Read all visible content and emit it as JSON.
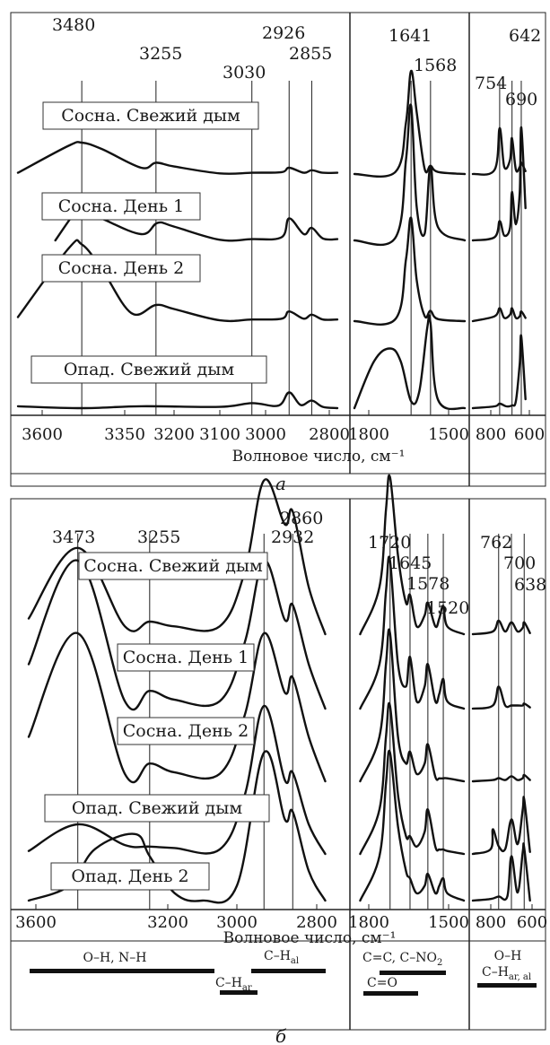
{
  "panels": [
    {
      "letter": "а",
      "xlabel": "Волновое число, см⁻¹",
      "sections": [
        {
          "ticks": [
            "3600",
            "3350",
            "3200",
            "3100",
            "3000",
            "2800"
          ],
          "peaks": [
            "3480",
            "3255",
            "3030",
            "2926",
            "2855"
          ]
        },
        {
          "ticks": [
            "1800",
            "1500"
          ],
          "peaks": [
            "1641",
            "1568"
          ]
        },
        {
          "ticks": [
            "800",
            "600"
          ],
          "peaks": [
            "754",
            "690",
            "642"
          ]
        }
      ],
      "labels": [
        "Сосна. Свежий дым",
        "Сосна. День 1",
        "Сосна. День 2",
        "Опад. Свежий дым"
      ]
    },
    {
      "letter": "б",
      "xlabel": "Волновое число, см⁻¹",
      "sections": [
        {
          "ticks": [
            "3600",
            "3200",
            "3000",
            "2800"
          ],
          "peaks": [
            "3473",
            "3255",
            "2932",
            "2860"
          ]
        },
        {
          "ticks": [
            "1800",
            "1500"
          ],
          "peaks": [
            "1720",
            "1645",
            "1578",
            "1520"
          ]
        },
        {
          "ticks": [
            "800",
            "600"
          ],
          "peaks": [
            "762",
            "700",
            "638"
          ]
        }
      ],
      "labels": [
        "Сосна. Свежий дым",
        "Сосна. День 1",
        "Сосна. День 2",
        "Опад. Свежий дым",
        "Опад. День 2"
      ]
    }
  ],
  "bands": {
    "oh_nh": "O–H, N–H",
    "ch_ar": "C–H",
    "ch_ar_sub": "ar",
    "ch_al": "C–H",
    "ch_al_sub": "al",
    "cc_cno2": "C=C, C–NO",
    "cc_cno2_sub": "2",
    "co": "C=O",
    "oh": "O–H",
    "ch_aral": "C–H",
    "ch_aral_sub": "ar, al"
  },
  "chart_data": [
    {
      "type": "line",
      "xlabel": "Волновое число, см⁻¹",
      "xaxis_reversed": true,
      "x_segments": [
        [
          3600,
          2800
        ],
        [
          1800,
          1500
        ],
        [
          800,
          600
        ]
      ],
      "peak_markers": [
        3480,
        3255,
        3030,
        2926,
        2855,
        1641,
        1568,
        754,
        690,
        642
      ],
      "series": [
        {
          "name": "Сосна. Свежий дым",
          "x": [
            3650,
            3520,
            3480,
            3420,
            3300,
            3255,
            3200,
            3100,
            3030,
            2950,
            2926,
            2880,
            2855,
            2820,
            2780,
            1850,
            1700,
            1660,
            1641,
            1620,
            1590,
            1568,
            1540,
            1480,
            850,
            780,
            754,
            730,
            700,
            690,
            670,
            650,
            642,
            620
          ],
          "y": [
            0.02,
            0.45,
            0.5,
            0.4,
            0.1,
            0.18,
            0.12,
            0.01,
            0.02,
            0.03,
            0.1,
            0.02,
            0.06,
            0.02,
            0.02,
            0.0,
            0.02,
            0.5,
            1.0,
            0.6,
            0.05,
            0.08,
            0.02,
            0.0,
            0.0,
            0.03,
            0.32,
            0.05,
            0.1,
            0.25,
            0.03,
            0.05,
            0.08,
            0.02
          ]
        },
        {
          "name": "Сосна. День 1",
          "x": [
            3560,
            3500,
            3480,
            3420,
            3300,
            3250,
            3200,
            3100,
            3030,
            2950,
            2926,
            2880,
            2855,
            2820,
            2780,
            1850,
            1700,
            1660,
            1641,
            1620,
            1590,
            1568,
            1540,
            1480,
            850,
            780,
            754,
            730,
            700,
            690,
            670,
            650,
            642,
            620
          ],
          "y": [
            0.0,
            0.45,
            0.5,
            0.35,
            0.1,
            0.28,
            0.22,
            0.01,
            0.02,
            0.05,
            0.35,
            0.1,
            0.2,
            0.03,
            0.02,
            0.0,
            0.02,
            0.6,
            1.0,
            0.25,
            0.05,
            0.55,
            0.1,
            0.0,
            0.0,
            0.02,
            0.12,
            0.03,
            0.08,
            0.3,
            0.1,
            0.3,
            0.7,
            0.2
          ]
        },
        {
          "name": "Сосна. День 2",
          "x": [
            3650,
            3520,
            3480,
            3420,
            3330,
            3255,
            3200,
            3100,
            3030,
            2950,
            2926,
            2880,
            2855,
            2820,
            2780,
            1850,
            1700,
            1660,
            1641,
            1620,
            1590,
            1568,
            1540,
            1480,
            850,
            780,
            754,
            730,
            700,
            690,
            670,
            650,
            642,
            620
          ],
          "y": [
            0.05,
            0.9,
            0.95,
            0.65,
            0.1,
            0.2,
            0.15,
            0.01,
            0.02,
            0.03,
            0.12,
            0.03,
            0.08,
            0.02,
            0.02,
            0.0,
            0.02,
            0.6,
            1.0,
            0.4,
            0.05,
            0.1,
            0.02,
            0.0,
            0.0,
            0.03,
            0.08,
            0.02,
            0.04,
            0.08,
            0.02,
            0.03,
            0.06,
            0.02
          ]
        },
        {
          "name": "Опад. Свежий дым",
          "x": [
            3650,
            3480,
            3300,
            3100,
            3030,
            2960,
            2926,
            2890,
            2855,
            2820,
            2780,
            1850,
            1780,
            1720,
            1680,
            1641,
            1610,
            1580,
            1568,
            1540,
            1480,
            850,
            780,
            754,
            720,
            690,
            670,
            650,
            642,
            620
          ],
          "y": [
            0.03,
            0.0,
            0.03,
            0.02,
            0.08,
            0.04,
            0.25,
            0.05,
            0.12,
            0.02,
            0.0,
            0.0,
            0.55,
            0.7,
            0.55,
            0.08,
            0.2,
            0.95,
            1.0,
            0.1,
            0.0,
            0.0,
            0.02,
            0.05,
            0.02,
            0.03,
            0.08,
            0.5,
            0.8,
            0.1
          ]
        }
      ]
    },
    {
      "type": "line",
      "xlabel": "Волновое число, см⁻¹",
      "xaxis_reversed": true,
      "x_segments": [
        [
          3600,
          2800
        ],
        [
          1800,
          1500
        ],
        [
          800,
          600
        ]
      ],
      "peak_markers": [
        3473,
        3255,
        2932,
        2860,
        1720,
        1645,
        1578,
        1520,
        762,
        700,
        638
      ],
      "series": [
        {
          "name": "Сосна. Свежий дым",
          "x": [
            3620,
            3473,
            3330,
            3255,
            3180,
            3050,
            2980,
            2932,
            2880,
            2860,
            2820,
            2790,
            1830,
            1760,
            1735,
            1720,
            1690,
            1660,
            1645,
            1620,
            1590,
            1578,
            1550,
            1535,
            1520,
            1505,
            1480,
            850,
            790,
            762,
            730,
            700,
            670,
            645,
            638,
            610
          ],
          "y": [
            0.1,
            0.55,
            0.05,
            0.08,
            0.05,
            0.05,
            0.4,
            0.98,
            0.7,
            0.78,
            0.3,
            0.0,
            0.0,
            0.3,
            0.8,
            1.0,
            0.5,
            0.2,
            0.25,
            0.05,
            0.12,
            0.2,
            0.05,
            0.1,
            0.18,
            0.05,
            0.0,
            0.0,
            0.05,
            0.25,
            0.05,
            0.22,
            0.05,
            0.12,
            0.22,
            0.02
          ]
        },
        {
          "name": "Сосна. День 1",
          "x": [
            3620,
            3473,
            3330,
            3255,
            3180,
            3050,
            2980,
            2932,
            2880,
            2860,
            2820,
            2790,
            1830,
            1760,
            1735,
            1720,
            1690,
            1660,
            1645,
            1620,
            1590,
            1578,
            1550,
            1535,
            1520,
            1505,
            1480,
            850,
            790,
            762,
            730,
            700,
            670,
            645,
            638,
            610
          ],
          "y": [
            0.3,
            1.0,
            0.05,
            0.12,
            0.06,
            0.05,
            0.45,
            1.0,
            0.6,
            0.7,
            0.3,
            0.0,
            0.0,
            0.3,
            0.8,
            1.0,
            0.3,
            0.15,
            0.35,
            0.05,
            0.15,
            0.3,
            0.05,
            0.1,
            0.2,
            0.05,
            0.0,
            0.0,
            0.05,
            0.35,
            0.05,
            0.05,
            0.05,
            0.05,
            0.08,
            0.02
          ]
        },
        {
          "name": "Сосна. День 2",
          "x": [
            3620,
            3473,
            3330,
            3255,
            3180,
            3050,
            2980,
            2932,
            2880,
            2860,
            2820,
            2790,
            1830,
            1760,
            1735,
            1720,
            1690,
            1660,
            1645,
            1620,
            1590,
            1578,
            1550,
            1535,
            1520,
            1505,
            1480,
            850,
            790,
            762,
            730,
            700,
            670,
            645,
            638,
            610
          ],
          "y": [
            0.3,
            1.0,
            0.05,
            0.12,
            0.06,
            0.05,
            0.45,
            1.0,
            0.6,
            0.7,
            0.3,
            0.0,
            0.0,
            0.3,
            0.8,
            1.0,
            0.3,
            0.12,
            0.2,
            0.05,
            0.12,
            0.25,
            0.03,
            0.02,
            0.02,
            0.02,
            0.0,
            0.0,
            0.02,
            0.05,
            0.02,
            0.08,
            0.02,
            0.05,
            0.1,
            0.02
          ]
        },
        {
          "name": "Опад. Свежий дым",
          "x": [
            3620,
            3473,
            3330,
            3255,
            3180,
            3050,
            2980,
            2932,
            2880,
            2860,
            2820,
            2790,
            1830,
            1760,
            1735,
            1720,
            1690,
            1660,
            1645,
            1620,
            1590,
            1578,
            1550,
            1535,
            1520,
            1505,
            1480,
            850,
            800,
            790,
            762,
            730,
            700,
            670,
            645,
            638,
            610
          ],
          "y": [
            0.02,
            0.2,
            0.06,
            0.05,
            0.04,
            0.03,
            0.4,
            1.0,
            0.5,
            0.55,
            0.2,
            0.0,
            0.0,
            0.3,
            0.8,
            1.0,
            0.4,
            0.12,
            0.12,
            0.05,
            0.15,
            0.3,
            0.05,
            0.03,
            0.03,
            0.02,
            0.0,
            0.0,
            0.05,
            0.25,
            0.08,
            0.05,
            0.35,
            0.1,
            0.45,
            0.55,
            0.02
          ]
        },
        {
          "name": "Опад. День 2",
          "x": [
            3620,
            3500,
            3420,
            3300,
            3255,
            3180,
            3100,
            3000,
            2932,
            2880,
            2860,
            2820,
            2790,
            1830,
            1760,
            1735,
            1720,
            1690,
            1660,
            1645,
            1620,
            1590,
            1578,
            1550,
            1535,
            1520,
            1505,
            1480,
            850,
            800,
            762,
            720,
            700,
            670,
            645,
            638,
            610
          ],
          "y": [
            0.0,
            0.1,
            0.35,
            0.45,
            0.3,
            0.05,
            0.0,
            0.1,
            1.0,
            0.55,
            0.6,
            0.2,
            0.0,
            0.0,
            0.3,
            0.8,
            1.0,
            0.5,
            0.2,
            0.15,
            0.05,
            0.1,
            0.18,
            0.05,
            0.1,
            0.15,
            0.05,
            0.0,
            0.0,
            0.02,
            0.05,
            0.05,
            0.55,
            0.1,
            0.6,
            0.65,
            0.0
          ]
        }
      ]
    }
  ]
}
